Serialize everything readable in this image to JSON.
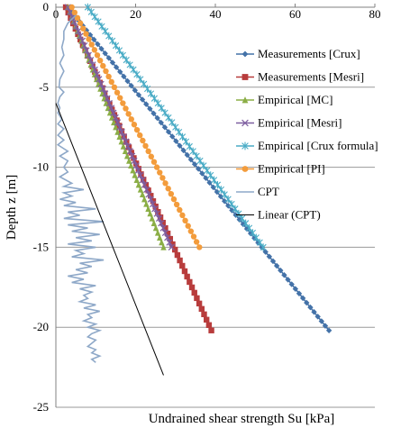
{
  "chart_data": {
    "type": "line",
    "title": "",
    "xlabel": "Undrained shear strength Su [kPa]",
    "ylabel": "Depth z [m]",
    "xlim": [
      0,
      80
    ],
    "ylim": [
      -25,
      0
    ],
    "x_ticks": [
      0,
      20,
      40,
      60,
      80
    ],
    "y_ticks": [
      0,
      -5,
      -10,
      -15,
      -20,
      -25
    ],
    "x_axis_position": "top",
    "grid": "horizontal",
    "legend_position": "right",
    "series": [
      {
        "name": "Measurements [Crux]",
        "color": "#4472a8",
        "marker": "diamond",
        "x": [
          3,
          68.5
        ],
        "y": [
          0,
          -20.2
        ],
        "n_markers": 70
      },
      {
        "name": "Measurements [Mesri]",
        "color": "#b83c3c",
        "marker": "square",
        "x": [
          2.5,
          39
        ],
        "y": [
          0,
          -20.2
        ],
        "n_markers": 60
      },
      {
        "name": "Empirical [MC]",
        "color": "#8bae46",
        "marker": "triangle",
        "x": [
          3,
          27
        ],
        "y": [
          0,
          -15
        ],
        "n_markers": 50
      },
      {
        "name": "Empirical [Mesri]",
        "color": "#7d5ea0",
        "marker": "x",
        "x": [
          3,
          29
        ],
        "y": [
          0,
          -15
        ],
        "n_markers": 50
      },
      {
        "name": "Empirical [Crux formula]",
        "color": "#4aacc6",
        "marker": "star",
        "x": [
          8,
          52
        ],
        "y": [
          0,
          -15
        ],
        "n_markers": 50
      },
      {
        "name": "Empirical [PI]",
        "color": "#f39c3c",
        "marker": "circle",
        "x": [
          4,
          36
        ],
        "y": [
          0,
          -15
        ],
        "n_markers": 45
      },
      {
        "name": "CPT",
        "color": "#8ea8c8",
        "marker": "none",
        "x": [
          5,
          3,
          2,
          2,
          1.5,
          2,
          1,
          2,
          1,
          0.8,
          2,
          1,
          0.5,
          1,
          0.5,
          1.5,
          0.5,
          2,
          0.5,
          2,
          0.5,
          3,
          1,
          3,
          2,
          3,
          1,
          4,
          2,
          7,
          2,
          4,
          1,
          5,
          2,
          10,
          3,
          6,
          2,
          12,
          3,
          8,
          4,
          11,
          5,
          9,
          3,
          10,
          5,
          7,
          4,
          12,
          6,
          9,
          5,
          8,
          3,
          7,
          4,
          10,
          6,
          9,
          7,
          8,
          6,
          10,
          7,
          11,
          8,
          9,
          7,
          10,
          8,
          11,
          9,
          8,
          10,
          9,
          8,
          10,
          9,
          11,
          9,
          10
        ],
        "y": [
          -0.5,
          -1,
          -1.5,
          -2,
          -2.5,
          -3,
          -3.5,
          -4,
          -4.5,
          -5,
          -5.3,
          -5.6,
          -6,
          -6.3,
          -6.6,
          -7,
          -7.3,
          -7.6,
          -8,
          -8.3,
          -8.6,
          -9,
          -9.3,
          -9.6,
          -10,
          -10.3,
          -10.6,
          -11,
          -11.2,
          -11.4,
          -11.6,
          -11.8,
          -12,
          -12.2,
          -12.4,
          -12.6,
          -12.8,
          -13,
          -13.2,
          -13.4,
          -13.6,
          -13.8,
          -14,
          -14.2,
          -14.4,
          -14.6,
          -14.8,
          -15,
          -15.2,
          -15.4,
          -15.6,
          -15.8,
          -16,
          -16.2,
          -16.4,
          -16.6,
          -16.8,
          -17,
          -17.2,
          -17.4,
          -17.6,
          -17.8,
          -18,
          -18.2,
          -18.4,
          -18.6,
          -18.8,
          -19,
          -19.2,
          -19.4,
          -19.6,
          -19.8,
          -20,
          -20.2,
          -20.4,
          -20.6,
          -20.8,
          -21,
          -21.2,
          -21.4,
          -21.6,
          -21.8,
          -22,
          -22.2
        ]
      },
      {
        "name": "Linear (CPT)",
        "color": "#000000",
        "marker": "none",
        "x": [
          0,
          27
        ],
        "y": [
          -6,
          -23
        ]
      }
    ]
  }
}
